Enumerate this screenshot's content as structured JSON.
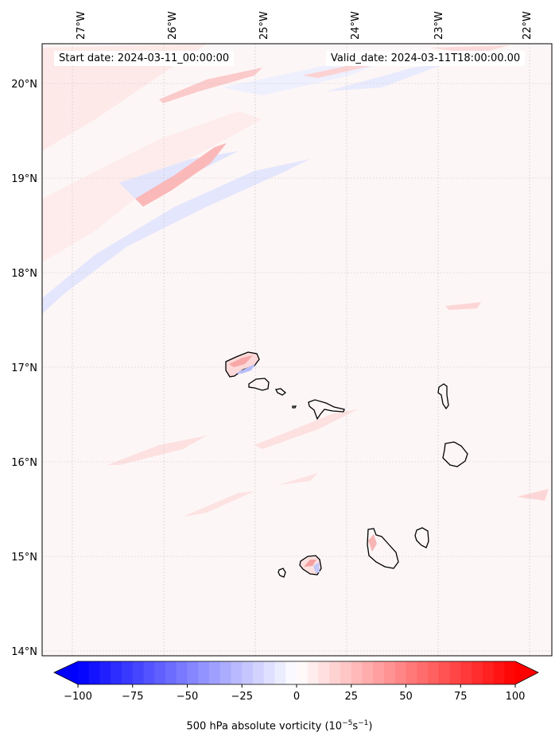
{
  "annotations": {
    "start": "Start date: 2024-03-11_00:00:00",
    "valid": "Valid_date: 2024-03-11T18:00:00.00"
  },
  "axes": {
    "lon_labels": [
      "27°W",
      "26°W",
      "25°W",
      "24°W",
      "23°W",
      "22°W"
    ],
    "lat_labels": [
      "14°N",
      "15°N",
      "16°N",
      "17°N",
      "18°N",
      "19°N",
      "20°N"
    ]
  },
  "colorbar": {
    "tick_labels": [
      "−100",
      "−75",
      "−50",
      "−25",
      "0",
      "25",
      "50",
      "75",
      "100"
    ],
    "label_prefix": "500 hPa absolute vorticity (10",
    "label_exp1": "−5",
    "label_mid": "s",
    "label_exp2": "−1",
    "label_suffix": ")",
    "min": -100,
    "max": 100,
    "step": 5
  },
  "colors": {
    "negative": "#0000ff",
    "positive": "#ff0000",
    "background": "#fdf6f6"
  }
}
